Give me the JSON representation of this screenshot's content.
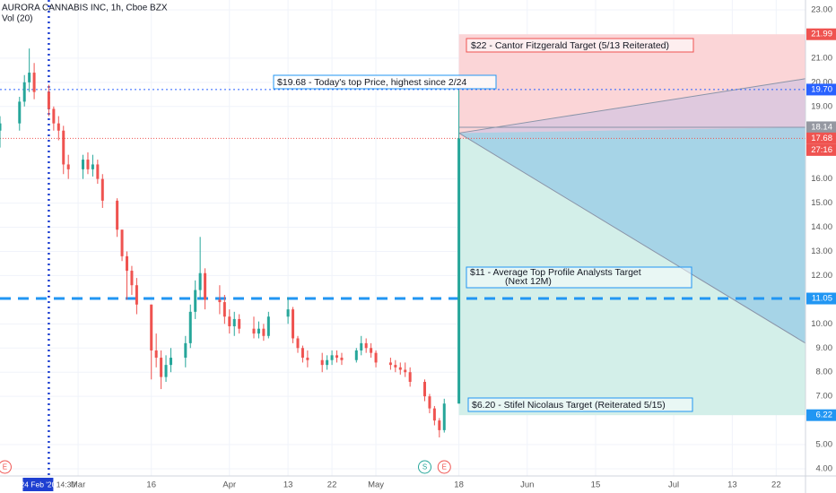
{
  "chart_data": {
    "type": "candlestick",
    "title": "AURORA CANNABIS INC, 1h, Cboe BZX",
    "subtitle": "Vol (20)",
    "xlim": [
      "2020-02-14",
      "2020-07-28"
    ],
    "ylim": [
      4,
      23
    ],
    "yticks": [
      {
        "value": 4,
        "label": "4.00"
      },
      {
        "value": 5,
        "label": "5.00"
      },
      {
        "value": 7,
        "label": "7.00"
      },
      {
        "value": 8,
        "label": "8.00"
      },
      {
        "value": 9,
        "label": "9.00"
      },
      {
        "value": 10,
        "label": "10.00"
      },
      {
        "value": 12,
        "label": "12.00"
      },
      {
        "value": 13,
        "label": "13.00"
      },
      {
        "value": 14,
        "label": "14.00"
      },
      {
        "value": 15,
        "label": "15.00"
      },
      {
        "value": 16,
        "label": "16.00"
      },
      {
        "value": 19,
        "label": "19.00"
      },
      {
        "value": 20,
        "label": "20.00"
      },
      {
        "value": 21,
        "label": "21.00"
      },
      {
        "value": 23,
        "label": "23.00"
      }
    ],
    "xticks": [
      {
        "value": "2020-03-01",
        "label": "Mar"
      },
      {
        "value": "2020-03-16",
        "label": "16"
      },
      {
        "value": "2020-04-01",
        "label": "Apr"
      },
      {
        "value": "2020-04-13",
        "label": "13"
      },
      {
        "value": "2020-04-22",
        "label": "22"
      },
      {
        "value": "2020-05-01",
        "label": "May"
      },
      {
        "value": "2020-05-18",
        "label": "18"
      },
      {
        "value": "2020-06-01",
        "label": "Jun"
      },
      {
        "value": "2020-06-15",
        "label": "15"
      },
      {
        "value": "2020-07-01",
        "label": "Jul"
      },
      {
        "value": "2020-07-13",
        "label": "13"
      },
      {
        "value": "2020-07-22",
        "label": "22"
      }
    ],
    "grid": true,
    "up_color": "#26a69a",
    "down_color": "#ef5350",
    "candles": [
      {
        "date": "2020-02-14",
        "open": 18.0,
        "high": 18.6,
        "low": 17.3,
        "close": 18.3
      },
      {
        "date": "2020-02-18",
        "open": 18.3,
        "high": 19.4,
        "low": 18.0,
        "close": 19.2
      },
      {
        "date": "2020-02-19",
        "open": 19.2,
        "high": 20.3,
        "low": 19.0,
        "close": 20.0
      },
      {
        "date": "2020-02-20",
        "open": 20.0,
        "high": 21.4,
        "low": 19.6,
        "close": 20.4
      },
      {
        "date": "2020-02-21",
        "open": 20.4,
        "high": 20.8,
        "low": 19.3,
        "close": 19.6
      },
      {
        "date": "2020-02-24",
        "open": 19.6,
        "high": 19.9,
        "low": 18.6,
        "close": 18.9
      },
      {
        "date": "2020-02-25",
        "open": 18.9,
        "high": 19.0,
        "low": 18.0,
        "close": 18.3
      },
      {
        "date": "2020-02-26",
        "open": 18.3,
        "high": 18.6,
        "low": 17.6,
        "close": 18.0
      },
      {
        "date": "2020-02-27",
        "open": 18.0,
        "high": 18.2,
        "low": 16.2,
        "close": 16.6
      },
      {
        "date": "2020-02-28",
        "open": 16.6,
        "high": 17.0,
        "low": 16.0,
        "close": 16.4
      },
      {
        "date": "2020-03-02",
        "open": 16.4,
        "high": 17.0,
        "low": 16.0,
        "close": 16.8
      },
      {
        "date": "2020-03-03",
        "open": 16.8,
        "high": 17.1,
        "low": 16.2,
        "close": 16.4
      },
      {
        "date": "2020-03-04",
        "open": 16.4,
        "high": 17.0,
        "low": 16.1,
        "close": 16.6
      },
      {
        "date": "2020-03-05",
        "open": 16.6,
        "high": 16.8,
        "low": 15.8,
        "close": 16.0
      },
      {
        "date": "2020-03-06",
        "open": 16.0,
        "high": 16.2,
        "low": 14.8,
        "close": 15.1
      },
      {
        "date": "2020-03-09",
        "open": 15.1,
        "high": 15.2,
        "low": 13.6,
        "close": 13.9
      },
      {
        "date": "2020-03-10",
        "open": 13.9,
        "high": 13.9,
        "low": 12.6,
        "close": 12.8
      },
      {
        "date": "2020-03-11",
        "open": 12.8,
        "high": 13.0,
        "low": 11.0,
        "close": 12.2
      },
      {
        "date": "2020-03-12",
        "open": 12.2,
        "high": 12.4,
        "low": 11.2,
        "close": 11.6
      },
      {
        "date": "2020-03-13",
        "open": 11.6,
        "high": 11.9,
        "low": 10.4,
        "close": 10.8
      },
      {
        "date": "2020-03-16",
        "open": 10.8,
        "high": 10.8,
        "low": 7.7,
        "close": 8.9
      },
      {
        "date": "2020-03-17",
        "open": 8.9,
        "high": 9.6,
        "low": 8.2,
        "close": 8.6
      },
      {
        "date": "2020-03-18",
        "open": 8.6,
        "high": 8.9,
        "low": 7.3,
        "close": 7.8
      },
      {
        "date": "2020-03-19",
        "open": 7.8,
        "high": 8.7,
        "low": 7.6,
        "close": 8.3
      },
      {
        "date": "2020-03-20",
        "open": 8.3,
        "high": 9.0,
        "low": 8.0,
        "close": 8.6
      },
      {
        "date": "2020-03-23",
        "open": 8.6,
        "high": 9.5,
        "low": 8.2,
        "close": 9.2
      },
      {
        "date": "2020-03-24",
        "open": 9.2,
        "high": 10.8,
        "low": 9.0,
        "close": 10.5
      },
      {
        "date": "2020-03-25",
        "open": 10.5,
        "high": 11.8,
        "low": 10.2,
        "close": 11.4
      },
      {
        "date": "2020-03-26",
        "open": 11.4,
        "high": 13.6,
        "low": 11.0,
        "close": 12.1
      },
      {
        "date": "2020-03-27",
        "open": 12.1,
        "high": 12.3,
        "low": 10.6,
        "close": 11.0
      },
      {
        "date": "2020-03-30",
        "open": 11.0,
        "high": 11.6,
        "low": 10.4,
        "close": 10.9
      },
      {
        "date": "2020-03-31",
        "open": 10.9,
        "high": 11.2,
        "low": 10.0,
        "close": 10.3
      },
      {
        "date": "2020-04-01",
        "open": 10.3,
        "high": 10.6,
        "low": 9.6,
        "close": 9.9
      },
      {
        "date": "2020-04-02",
        "open": 9.9,
        "high": 10.5,
        "low": 9.5,
        "close": 10.2
      },
      {
        "date": "2020-04-03",
        "open": 10.2,
        "high": 10.4,
        "low": 9.6,
        "close": 9.8
      },
      {
        "date": "2020-04-06",
        "open": 9.8,
        "high": 10.3,
        "low": 9.4,
        "close": 9.6
      },
      {
        "date": "2020-04-07",
        "open": 9.6,
        "high": 10.1,
        "low": 9.4,
        "close": 9.8
      },
      {
        "date": "2020-04-08",
        "open": 9.8,
        "high": 10.0,
        "low": 9.3,
        "close": 9.5
      },
      {
        "date": "2020-04-09",
        "open": 9.5,
        "high": 10.5,
        "low": 9.4,
        "close": 10.3
      },
      {
        "date": "2020-04-13",
        "open": 10.3,
        "high": 11.1,
        "low": 10.0,
        "close": 10.6
      },
      {
        "date": "2020-04-14",
        "open": 10.6,
        "high": 10.7,
        "low": 9.2,
        "close": 9.4
      },
      {
        "date": "2020-04-15",
        "open": 9.4,
        "high": 9.5,
        "low": 8.8,
        "close": 9.0
      },
      {
        "date": "2020-04-16",
        "open": 9.0,
        "high": 9.1,
        "low": 8.4,
        "close": 8.6
      },
      {
        "date": "2020-04-17",
        "open": 8.6,
        "high": 8.9,
        "low": 8.2,
        "close": 8.5
      },
      {
        "date": "2020-04-20",
        "open": 8.5,
        "high": 8.8,
        "low": 8.0,
        "close": 8.3
      },
      {
        "date": "2020-04-21",
        "open": 8.3,
        "high": 8.7,
        "low": 8.1,
        "close": 8.5
      },
      {
        "date": "2020-04-22",
        "open": 8.5,
        "high": 8.9,
        "low": 8.3,
        "close": 8.7
      },
      {
        "date": "2020-04-23",
        "open": 8.7,
        "high": 8.9,
        "low": 8.4,
        "close": 8.6
      },
      {
        "date": "2020-04-24",
        "open": 8.6,
        "high": 8.8,
        "low": 8.3,
        "close": 8.5
      },
      {
        "date": "2020-04-27",
        "open": 8.5,
        "high": 9.0,
        "low": 8.4,
        "close": 8.9
      },
      {
        "date": "2020-04-28",
        "open": 8.9,
        "high": 9.5,
        "low": 8.7,
        "close": 9.2
      },
      {
        "date": "2020-04-29",
        "open": 9.2,
        "high": 9.4,
        "low": 8.8,
        "close": 9.0
      },
      {
        "date": "2020-04-30",
        "open": 9.0,
        "high": 9.2,
        "low": 8.6,
        "close": 8.8
      },
      {
        "date": "2020-05-01",
        "open": 8.8,
        "high": 8.9,
        "low": 8.2,
        "close": 8.4
      },
      {
        "date": "2020-05-04",
        "open": 8.4,
        "high": 8.6,
        "low": 8.1,
        "close": 8.3
      },
      {
        "date": "2020-05-05",
        "open": 8.3,
        "high": 8.5,
        "low": 8.0,
        "close": 8.2
      },
      {
        "date": "2020-05-06",
        "open": 8.2,
        "high": 8.4,
        "low": 7.9,
        "close": 8.1
      },
      {
        "date": "2020-05-07",
        "open": 8.1,
        "high": 8.4,
        "low": 7.8,
        "close": 8.0
      },
      {
        "date": "2020-05-08",
        "open": 8.0,
        "high": 8.2,
        "low": 7.4,
        "close": 7.6
      },
      {
        "date": "2020-05-11",
        "open": 7.6,
        "high": 7.7,
        "low": 6.8,
        "close": 7.0
      },
      {
        "date": "2020-05-12",
        "open": 7.0,
        "high": 7.1,
        "low": 6.3,
        "close": 6.5
      },
      {
        "date": "2020-05-13",
        "open": 6.5,
        "high": 6.6,
        "low": 5.8,
        "close": 6.0
      },
      {
        "date": "2020-05-14",
        "open": 6.0,
        "high": 6.1,
        "low": 5.3,
        "close": 5.6
      },
      {
        "date": "2020-05-15",
        "open": 5.6,
        "high": 6.9,
        "low": 5.5,
        "close": 6.7
      },
      {
        "date": "2020-05-18",
        "open": 6.7,
        "high": 19.68,
        "low": 6.7,
        "close": 17.68
      }
    ],
    "zones": [
      {
        "from": "2020-05-18",
        "top": 21.99,
        "bottom": 17.68,
        "color": "#fbd5d7"
      },
      {
        "from": "2020-05-18",
        "top": 17.68,
        "bottom": 6.22,
        "color": "#d3efe9"
      }
    ],
    "fan": {
      "from": "2020-05-18",
      "origin": 17.9,
      "upper": 20.15,
      "lower": 9.2,
      "level": 18.14,
      "upper_color": "#d8c6e0",
      "lower_color": "#9dcfe6",
      "line_color": "#8a94a8"
    },
    "levels": [
      {
        "value": 19.7,
        "color": "#2962ff",
        "dash": "2 3",
        "width": 1
      },
      {
        "value": 17.68,
        "color": "#ef5350",
        "dash": "1 2",
        "width": 1
      },
      {
        "value": 11.05,
        "color": "#2196f3",
        "dash": "12 8",
        "width": 3
      }
    ],
    "price_tags": [
      {
        "value": 21.99,
        "label": "21.99",
        "color": "#ef5350"
      },
      {
        "value": 19.7,
        "label": "19.70",
        "color": "#2962ff"
      },
      {
        "value": 18.14,
        "label": "18.14",
        "color": "#9598a1"
      },
      {
        "value": 17.68,
        "label": "17.68",
        "color": "#ef5350"
      },
      {
        "value": 11.05,
        "label": "11.05",
        "color": "#2196f3"
      },
      {
        "value": 6.22,
        "color": "#2196f3"
      }
    ],
    "countdown": "27:16",
    "annotations": [
      "$22 - Cantor Fitzgerald Target (5/13 Reiterated)",
      "$19.68 - Today's top Price, highest since 2/24",
      "$11 - Average Top Profile Analysts Target",
      "(Next 12M)",
      "$6.20 - Stifel Nicolaus Target (Reiterated 5/15)"
    ],
    "crosshair": {
      "date": "2020-02-24",
      "label": "24 Feb '20",
      "time": "14:30"
    },
    "events": [
      {
        "date": "2020-02-15",
        "label": "E",
        "color": "#ef5350"
      },
      {
        "date": "2020-05-11",
        "label": "S",
        "color": "#26a69a"
      },
      {
        "date": "2020-05-15",
        "label": "E",
        "color": "#ef5350"
      }
    ]
  }
}
